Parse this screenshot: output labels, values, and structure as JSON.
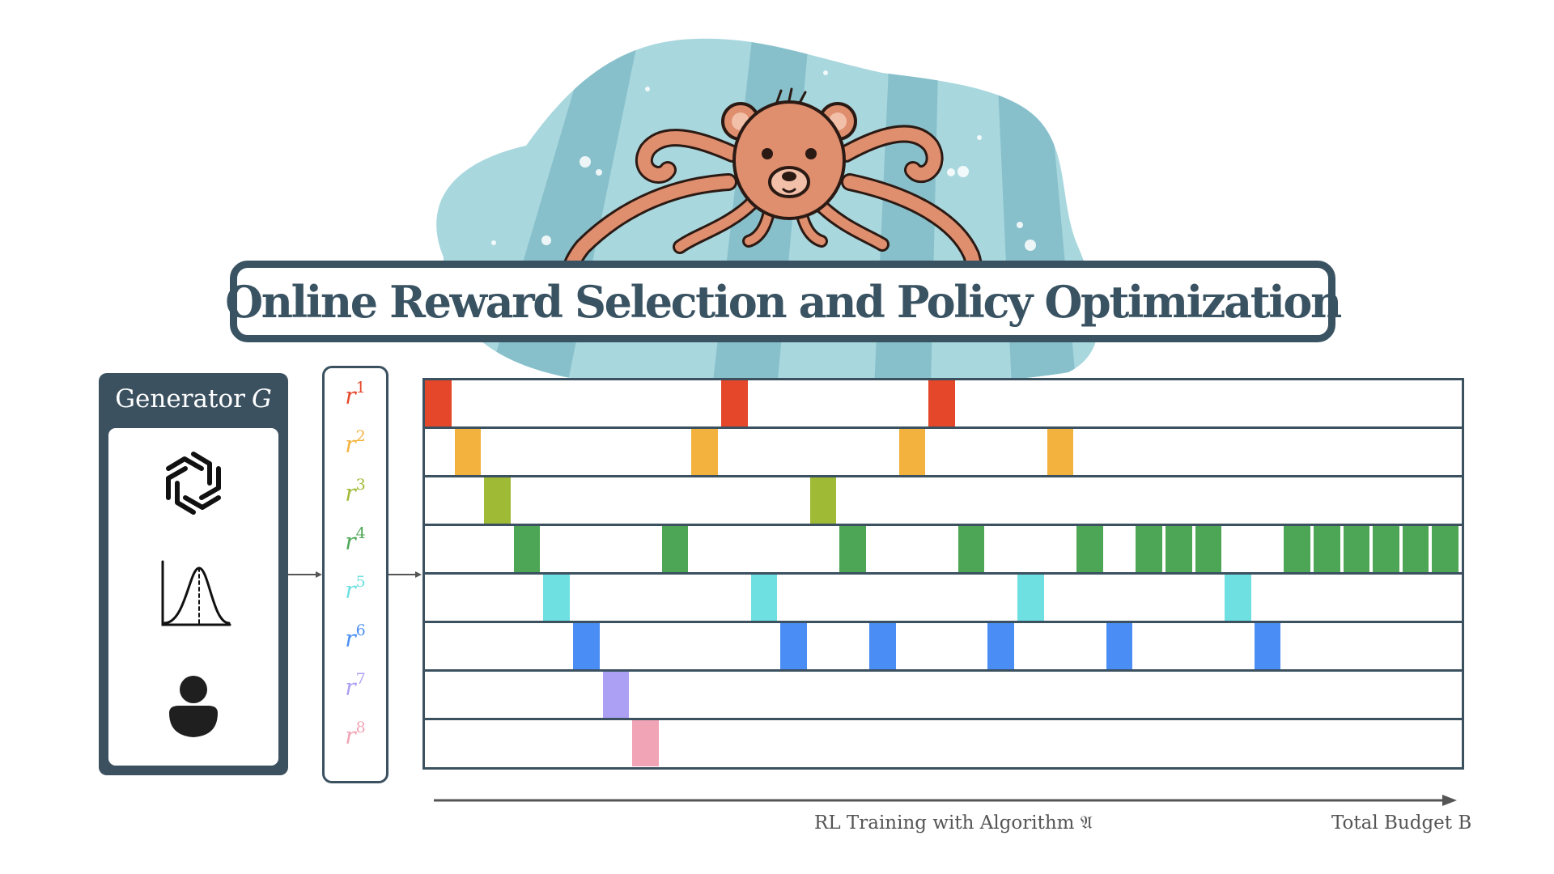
{
  "title": "Online Reward Selection and Policy Optimization",
  "generator": {
    "label": "Generator",
    "symbol": "G",
    "icons": [
      "openai-logo-icon",
      "distribution-curve-icon",
      "person-icon"
    ]
  },
  "rewards": [
    {
      "base": "r",
      "sup": "1",
      "color": "#e5472b"
    },
    {
      "base": "r",
      "sup": "2",
      "color": "#f3b23d"
    },
    {
      "base": "r",
      "sup": "3",
      "color": "#9fba35"
    },
    {
      "base": "r",
      "sup": "4",
      "color": "#4ca655"
    },
    {
      "base": "r",
      "sup": "5",
      "color": "#6fe0e2"
    },
    {
      "base": "r",
      "sup": "6",
      "color": "#4a8ef5"
    },
    {
      "base": "r",
      "sup": "7",
      "color": "#aba0f3"
    },
    {
      "base": "r",
      "sup": "8",
      "color": "#f1a4b5"
    }
  ],
  "schedule": [
    [
      0,
      10,
      17
    ],
    [
      1,
      9,
      16,
      21
    ],
    [
      2,
      13
    ],
    [
      3,
      8,
      14,
      18,
      22,
      24,
      25,
      26,
      29,
      30,
      31,
      32,
      33,
      34
    ],
    [
      4,
      11,
      20,
      27
    ],
    [
      5,
      12,
      15,
      19,
      23,
      28
    ],
    [
      6
    ],
    [
      7
    ]
  ],
  "total_slots": 35,
  "axis": {
    "label": "RL Training with Algorithm 𝔄",
    "end_label": "Total Budget B"
  },
  "colors": {
    "frame": "#3b5160",
    "title": "#3a5362",
    "blob": "#a9d7de",
    "blob_stripe": "#87c0cb",
    "octopus": "#df8e6e"
  }
}
